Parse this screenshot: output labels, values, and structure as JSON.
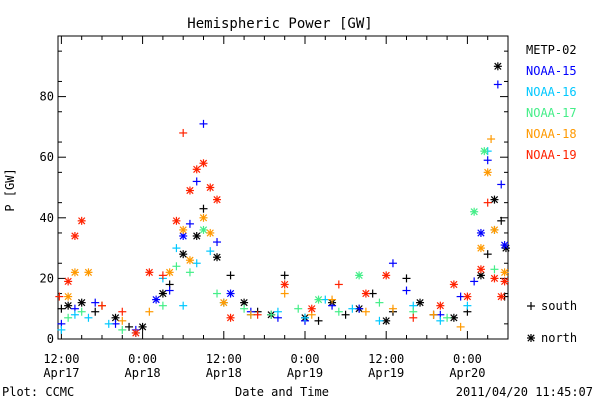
{
  "chart_data": {
    "type": "scatter",
    "title": "Hemispheric Power [GW]",
    "ylabel": "P [GW]",
    "xlabel": "Date and Time",
    "ylim": [
      0,
      100
    ],
    "xlim_hours": [
      -0.5,
      66
    ],
    "yticks": [
      0,
      20,
      40,
      60,
      80
    ],
    "xticks": [
      {
        "h": 0,
        "time": "12:00",
        "date": "Apr17"
      },
      {
        "h": 12,
        "time": "0:00",
        "date": "Apr18"
      },
      {
        "h": 24,
        "time": "12:00",
        "date": "Apr18"
      },
      {
        "h": 36,
        "time": "0:00",
        "date": "Apr19"
      },
      {
        "h": 48,
        "time": "12:00",
        "date": "Apr19"
      },
      {
        "h": 60,
        "time": "0:00",
        "date": "Apr20"
      }
    ],
    "marker_legend": [
      {
        "symbol": "+",
        "label": "south"
      },
      {
        "symbol": "*",
        "label": "north"
      }
    ],
    "series": [
      {
        "name": "METP-02",
        "color": "#000000",
        "points": [
          [
            0,
            10,
            "+"
          ],
          [
            1,
            11,
            "*"
          ],
          [
            3,
            12,
            "*"
          ],
          [
            5,
            9,
            "+"
          ],
          [
            8,
            7,
            "*"
          ],
          [
            10,
            4,
            "+"
          ],
          [
            12,
            4,
            "*"
          ],
          [
            15,
            15,
            "*"
          ],
          [
            16,
            18,
            "+"
          ],
          [
            18,
            28,
            "*"
          ],
          [
            20,
            34,
            "*"
          ],
          [
            21,
            43,
            "+"
          ],
          [
            23,
            27,
            "*"
          ],
          [
            25,
            21,
            "+"
          ],
          [
            27,
            12,
            "*"
          ],
          [
            29,
            9,
            "+"
          ],
          [
            31,
            8,
            "*"
          ],
          [
            33,
            21,
            "+"
          ],
          [
            36,
            7,
            "*"
          ],
          [
            38,
            6,
            "+"
          ],
          [
            40,
            12,
            "*"
          ],
          [
            42,
            8,
            "+"
          ],
          [
            44,
            10,
            "*"
          ],
          [
            46,
            15,
            "+"
          ],
          [
            48,
            6,
            "*"
          ],
          [
            49,
            9,
            "+"
          ],
          [
            51,
            20,
            "+"
          ],
          [
            53,
            12,
            "*"
          ],
          [
            55,
            8,
            "+"
          ],
          [
            58,
            7,
            "*"
          ],
          [
            60,
            9,
            "+"
          ],
          [
            62,
            21,
            "*"
          ],
          [
            63,
            28,
            "+"
          ],
          [
            64,
            46,
            "*"
          ],
          [
            64.5,
            90,
            "*"
          ],
          [
            65,
            39,
            "+"
          ],
          [
            65.5,
            14,
            "+"
          ],
          [
            65.7,
            30,
            "*"
          ]
        ]
      },
      {
        "name": "NOAA-15",
        "color": "#0000ff",
        "points": [
          [
            0,
            5,
            "+"
          ],
          [
            2,
            10,
            "+"
          ],
          [
            5,
            12,
            "+"
          ],
          [
            8,
            5,
            "+"
          ],
          [
            11,
            3,
            "+"
          ],
          [
            14,
            13,
            "*"
          ],
          [
            16,
            16,
            "+"
          ],
          [
            18,
            34,
            "*"
          ],
          [
            19,
            38,
            "+"
          ],
          [
            20,
            52,
            "+"
          ],
          [
            21,
            71,
            "+"
          ],
          [
            23,
            32,
            "+"
          ],
          [
            25,
            15,
            "*"
          ],
          [
            28,
            9,
            "+"
          ],
          [
            32,
            7,
            "+"
          ],
          [
            36,
            6,
            "+"
          ],
          [
            40,
            11,
            "+"
          ],
          [
            44,
            10,
            "+"
          ],
          [
            49,
            25,
            "+"
          ],
          [
            51,
            16,
            "+"
          ],
          [
            56,
            8,
            "+"
          ],
          [
            59,
            14,
            "+"
          ],
          [
            61,
            19,
            "+"
          ],
          [
            62,
            35,
            "*"
          ],
          [
            63,
            59,
            "+"
          ],
          [
            64.5,
            84,
            "+"
          ],
          [
            65,
            51,
            "+"
          ],
          [
            65.5,
            31,
            "*"
          ]
        ]
      },
      {
        "name": "NOAA-16",
        "color": "#00c8ff",
        "points": [
          [
            0,
            3,
            "+"
          ],
          [
            2,
            8,
            "+"
          ],
          [
            4,
            7,
            "+"
          ],
          [
            7,
            5,
            "+"
          ],
          [
            11,
            2,
            "+"
          ],
          [
            15,
            20,
            "+"
          ],
          [
            17,
            30,
            "+"
          ],
          [
            18,
            11,
            "+"
          ],
          [
            20,
            25,
            "+"
          ],
          [
            22,
            29,
            "+"
          ],
          [
            24,
            12,
            "+"
          ],
          [
            28,
            8,
            "+"
          ],
          [
            32,
            9,
            "+"
          ],
          [
            36,
            7,
            "+"
          ],
          [
            39,
            13,
            "+"
          ],
          [
            43,
            10,
            "+"
          ],
          [
            47,
            6,
            "+"
          ],
          [
            52,
            11,
            "+"
          ],
          [
            56,
            6,
            "+"
          ],
          [
            60,
            11,
            "+"
          ],
          [
            63,
            62,
            "+"
          ],
          [
            64,
            36,
            "+"
          ]
        ]
      },
      {
        "name": "NOAA-17",
        "color": "#44ee88",
        "points": [
          [
            1,
            7,
            "+"
          ],
          [
            3,
            9,
            "+"
          ],
          [
            6,
            11,
            "+"
          ],
          [
            9,
            3,
            "+"
          ],
          [
            15,
            11,
            "+"
          ],
          [
            17,
            24,
            "+"
          ],
          [
            19,
            22,
            "+"
          ],
          [
            21,
            36,
            "*"
          ],
          [
            23,
            15,
            "+"
          ],
          [
            27,
            10,
            "+"
          ],
          [
            31,
            8,
            "+"
          ],
          [
            35,
            10,
            "+"
          ],
          [
            38,
            13,
            "*"
          ],
          [
            41,
            9,
            "+"
          ],
          [
            44,
            21,
            "*"
          ],
          [
            47,
            12,
            "+"
          ],
          [
            52,
            9,
            "+"
          ],
          [
            57,
            7,
            "+"
          ],
          [
            61,
            42,
            "*"
          ],
          [
            62.5,
            62,
            "*"
          ],
          [
            64,
            23,
            "+"
          ]
        ]
      },
      {
        "name": "NOAA-18",
        "color": "#ff9900",
        "points": [
          [
            1,
            14,
            "*"
          ],
          [
            2,
            22,
            "*"
          ],
          [
            4,
            22,
            "*"
          ],
          [
            6,
            11,
            "+"
          ],
          [
            9,
            6,
            "+"
          ],
          [
            13,
            9,
            "+"
          ],
          [
            16,
            22,
            "*"
          ],
          [
            18,
            36,
            "*"
          ],
          [
            19,
            26,
            "*"
          ],
          [
            21,
            40,
            "*"
          ],
          [
            22,
            35,
            "*"
          ],
          [
            24,
            12,
            "*"
          ],
          [
            28,
            8,
            "+"
          ],
          [
            33,
            15,
            "+"
          ],
          [
            37,
            8,
            "+"
          ],
          [
            40,
            13,
            "+"
          ],
          [
            45,
            9,
            "+"
          ],
          [
            49,
            10,
            "+"
          ],
          [
            55,
            8,
            "+"
          ],
          [
            59,
            4,
            "+"
          ],
          [
            62,
            30,
            "*"
          ],
          [
            63,
            55,
            "*"
          ],
          [
            63.5,
            66,
            "+"
          ],
          [
            64,
            36,
            "*"
          ],
          [
            65.5,
            22,
            "*"
          ]
        ]
      },
      {
        "name": "NOAA-19",
        "color": "#ff2200",
        "points": [
          [
            -0.3,
            14,
            "+"
          ],
          [
            1,
            19,
            "*"
          ],
          [
            2,
            34,
            "*"
          ],
          [
            3,
            39,
            "*"
          ],
          [
            6,
            11,
            "+"
          ],
          [
            9,
            9,
            "+"
          ],
          [
            11,
            2,
            "*"
          ],
          [
            13,
            22,
            "*"
          ],
          [
            15,
            21,
            "+"
          ],
          [
            17,
            39,
            "*"
          ],
          [
            18,
            68,
            "+"
          ],
          [
            19,
            49,
            "*"
          ],
          [
            20,
            56,
            "*"
          ],
          [
            21,
            58,
            "*"
          ],
          [
            22,
            50,
            "*"
          ],
          [
            23,
            46,
            "*"
          ],
          [
            25,
            7,
            "*"
          ],
          [
            29,
            8,
            "+"
          ],
          [
            33,
            18,
            "*"
          ],
          [
            37,
            10,
            "*"
          ],
          [
            41,
            18,
            "+"
          ],
          [
            45,
            15,
            "*"
          ],
          [
            48,
            21,
            "*"
          ],
          [
            52,
            7,
            "+"
          ],
          [
            56,
            11,
            "*"
          ],
          [
            58,
            18,
            "*"
          ],
          [
            60,
            14,
            "*"
          ],
          [
            62,
            23,
            "*"
          ],
          [
            63,
            45,
            "+"
          ],
          [
            64,
            20,
            "*"
          ],
          [
            65,
            14,
            "*"
          ],
          [
            65.5,
            19,
            "*"
          ]
        ]
      }
    ]
  },
  "footer": {
    "plot_credit": "Plot: CCMC",
    "timestamp": "2011/04/20 11:45:07"
  }
}
